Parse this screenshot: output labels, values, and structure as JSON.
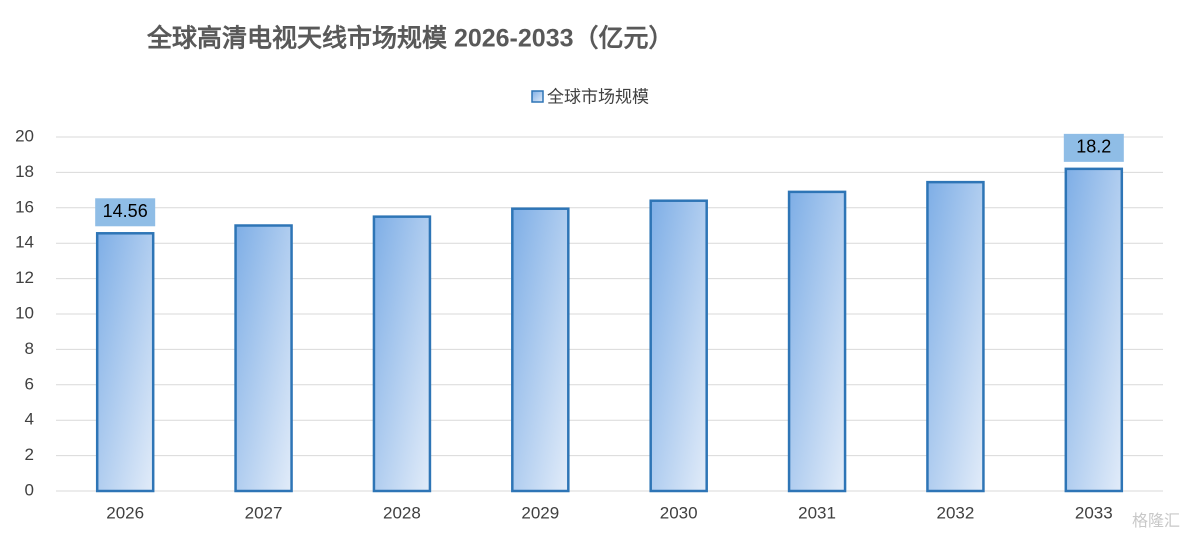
{
  "chart_data": {
    "type": "bar",
    "title": "全球高清电视天线市场规模 2026-2033（亿元）",
    "categories": [
      "2026",
      "2027",
      "2028",
      "2029",
      "2030",
      "2031",
      "2032",
      "2033"
    ],
    "series": [
      {
        "name": "全球市场规模",
        "color": "#2e75b6",
        "values": [
          14.56,
          15.0,
          15.5,
          15.95,
          16.4,
          16.9,
          17.45,
          18.2
        ],
        "value_labels": [
          "14.56",
          null,
          null,
          null,
          null,
          null,
          null,
          "18.2"
        ]
      }
    ],
    "ylim": [
      0,
      20
    ],
    "yticks": [
      0,
      2,
      4,
      6,
      8,
      10,
      12,
      14,
      16,
      18,
      20
    ],
    "grid": true,
    "legend": "top",
    "watermark": "格隆汇"
  }
}
